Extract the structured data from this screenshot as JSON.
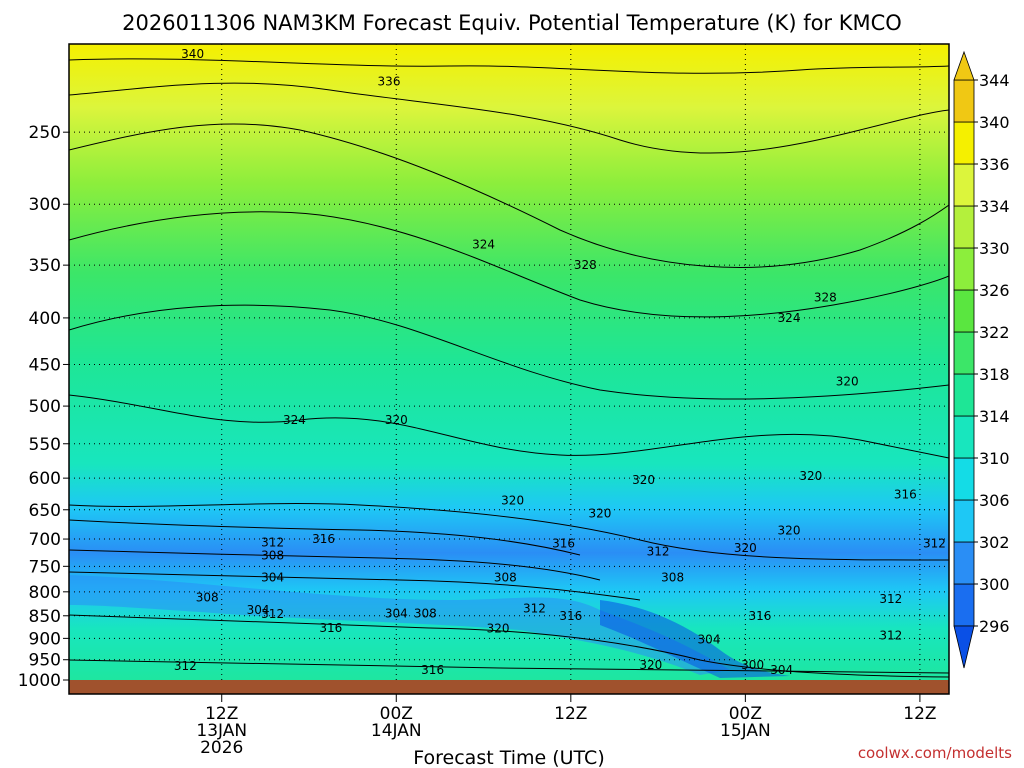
{
  "chart_data": {
    "type": "heatmap",
    "title": "2026011306 NAM3KM Forecast Equiv. Potential Temperature (K) for KMCO",
    "xlabel": "Forecast Time (UTC)",
    "ylabel": "",
    "xlim_hours": [
      -4.5,
      56
    ],
    "ylim_hpa": [
      1000,
      200
    ],
    "x_ticks": [
      {
        "hour": 6,
        "lines": [
          "12Z",
          "13JAN",
          "2026"
        ]
      },
      {
        "hour": 18,
        "lines": [
          "00Z",
          "14JAN"
        ]
      },
      {
        "hour": 30,
        "lines": [
          "12Z"
        ]
      },
      {
        "hour": 42,
        "lines": [
          "00Z",
          "15JAN"
        ]
      },
      {
        "hour": 54,
        "lines": [
          "12Z"
        ]
      }
    ],
    "y_ticks": [
      250,
      300,
      350,
      400,
      450,
      500,
      550,
      600,
      650,
      700,
      750,
      800,
      850,
      900,
      950,
      1000
    ],
    "y_tick_labels": [
      "250",
      "300",
      "350",
      "400",
      "450",
      "500",
      "550",
      "600",
      "650",
      "700",
      "750",
      "800",
      "850",
      "900",
      "950",
      "1000"
    ],
    "colorbar": {
      "levels": [
        296,
        300,
        302,
        306,
        310,
        314,
        318,
        322,
        326,
        330,
        334,
        336,
        340,
        344
      ],
      "labels": [
        "296",
        "300",
        "302",
        "306",
        "310",
        "314",
        "318",
        "322",
        "326",
        "330",
        "334",
        "336",
        "340",
        "344"
      ],
      "colors": [
        "#0a50e6",
        "#1a6ef0",
        "#2a8ef5",
        "#1ec8f5",
        "#14dce6",
        "#18e6be",
        "#1ee696",
        "#3ce668",
        "#5ae640",
        "#8cee3c",
        "#b4f03c",
        "#dcf53c",
        "#f5f000",
        "#f0c814"
      ]
    },
    "contour_labels": [
      {
        "hour": 4,
        "hpa": 205,
        "text": "340"
      },
      {
        "hour": 17.5,
        "hpa": 220,
        "text": "336"
      },
      {
        "hour": 24,
        "hpa": 332,
        "text": "324"
      },
      {
        "hour": 31,
        "hpa": 350,
        "text": "328"
      },
      {
        "hour": 47.5,
        "hpa": 380,
        "text": "328"
      },
      {
        "hour": 45,
        "hpa": 400,
        "text": "324"
      },
      {
        "hour": 49,
        "hpa": 470,
        "text": "320"
      },
      {
        "hour": 11,
        "hpa": 518,
        "text": "324"
      },
      {
        "hour": 18,
        "hpa": 518,
        "text": "320"
      },
      {
        "hour": 26,
        "hpa": 635,
        "text": "320"
      },
      {
        "hour": 35,
        "hpa": 603,
        "text": "320"
      },
      {
        "hour": 46.5,
        "hpa": 597,
        "text": "320"
      },
      {
        "hour": 53,
        "hpa": 625,
        "text": "316"
      },
      {
        "hour": 32,
        "hpa": 656,
        "text": "320"
      },
      {
        "hour": 45,
        "hpa": 685,
        "text": "320"
      },
      {
        "hour": 42,
        "hpa": 716,
        "text": "320"
      },
      {
        "hour": 13,
        "hpa": 700,
        "text": "316"
      },
      {
        "hour": 9.5,
        "hpa": 706,
        "text": "312"
      },
      {
        "hour": 9.5,
        "hpa": 730,
        "text": "308"
      },
      {
        "hour": 29.5,
        "hpa": 708,
        "text": "316"
      },
      {
        "hour": 36,
        "hpa": 722,
        "text": "312"
      },
      {
        "hour": 9.5,
        "hpa": 772,
        "text": "304"
      },
      {
        "hour": 5,
        "hpa": 812,
        "text": "308"
      },
      {
        "hour": 8.5,
        "hpa": 838,
        "text": "304"
      },
      {
        "hour": 9.5,
        "hpa": 846,
        "text": "312"
      },
      {
        "hour": 25.5,
        "hpa": 772,
        "text": "308"
      },
      {
        "hour": 37,
        "hpa": 772,
        "text": "308"
      },
      {
        "hour": 18,
        "hpa": 845,
        "text": "304"
      },
      {
        "hour": 20,
        "hpa": 845,
        "text": "308"
      },
      {
        "hour": 27.5,
        "hpa": 835,
        "text": "312"
      },
      {
        "hour": 30,
        "hpa": 850,
        "text": "316"
      },
      {
        "hour": 13.5,
        "hpa": 877,
        "text": "316"
      },
      {
        "hour": 25,
        "hpa": 878,
        "text": "320"
      },
      {
        "hour": 43,
        "hpa": 850,
        "text": "316"
      },
      {
        "hour": 52,
        "hpa": 815,
        "text": "312"
      },
      {
        "hour": 55,
        "hpa": 708,
        "text": "312"
      },
      {
        "hour": 52,
        "hpa": 893,
        "text": "312"
      },
      {
        "hour": 39.5,
        "hpa": 903,
        "text": "304"
      },
      {
        "hour": 3.5,
        "hpa": 965,
        "text": "312"
      },
      {
        "hour": 20.5,
        "hpa": 975,
        "text": "316"
      },
      {
        "hour": 35.5,
        "hpa": 963,
        "text": "320"
      },
      {
        "hour": 42.5,
        "hpa": 963,
        "text": "300"
      },
      {
        "hour": 44.5,
        "hpa": 975,
        "text": "304"
      }
    ]
  },
  "credit": "coolwx.com/modelts"
}
